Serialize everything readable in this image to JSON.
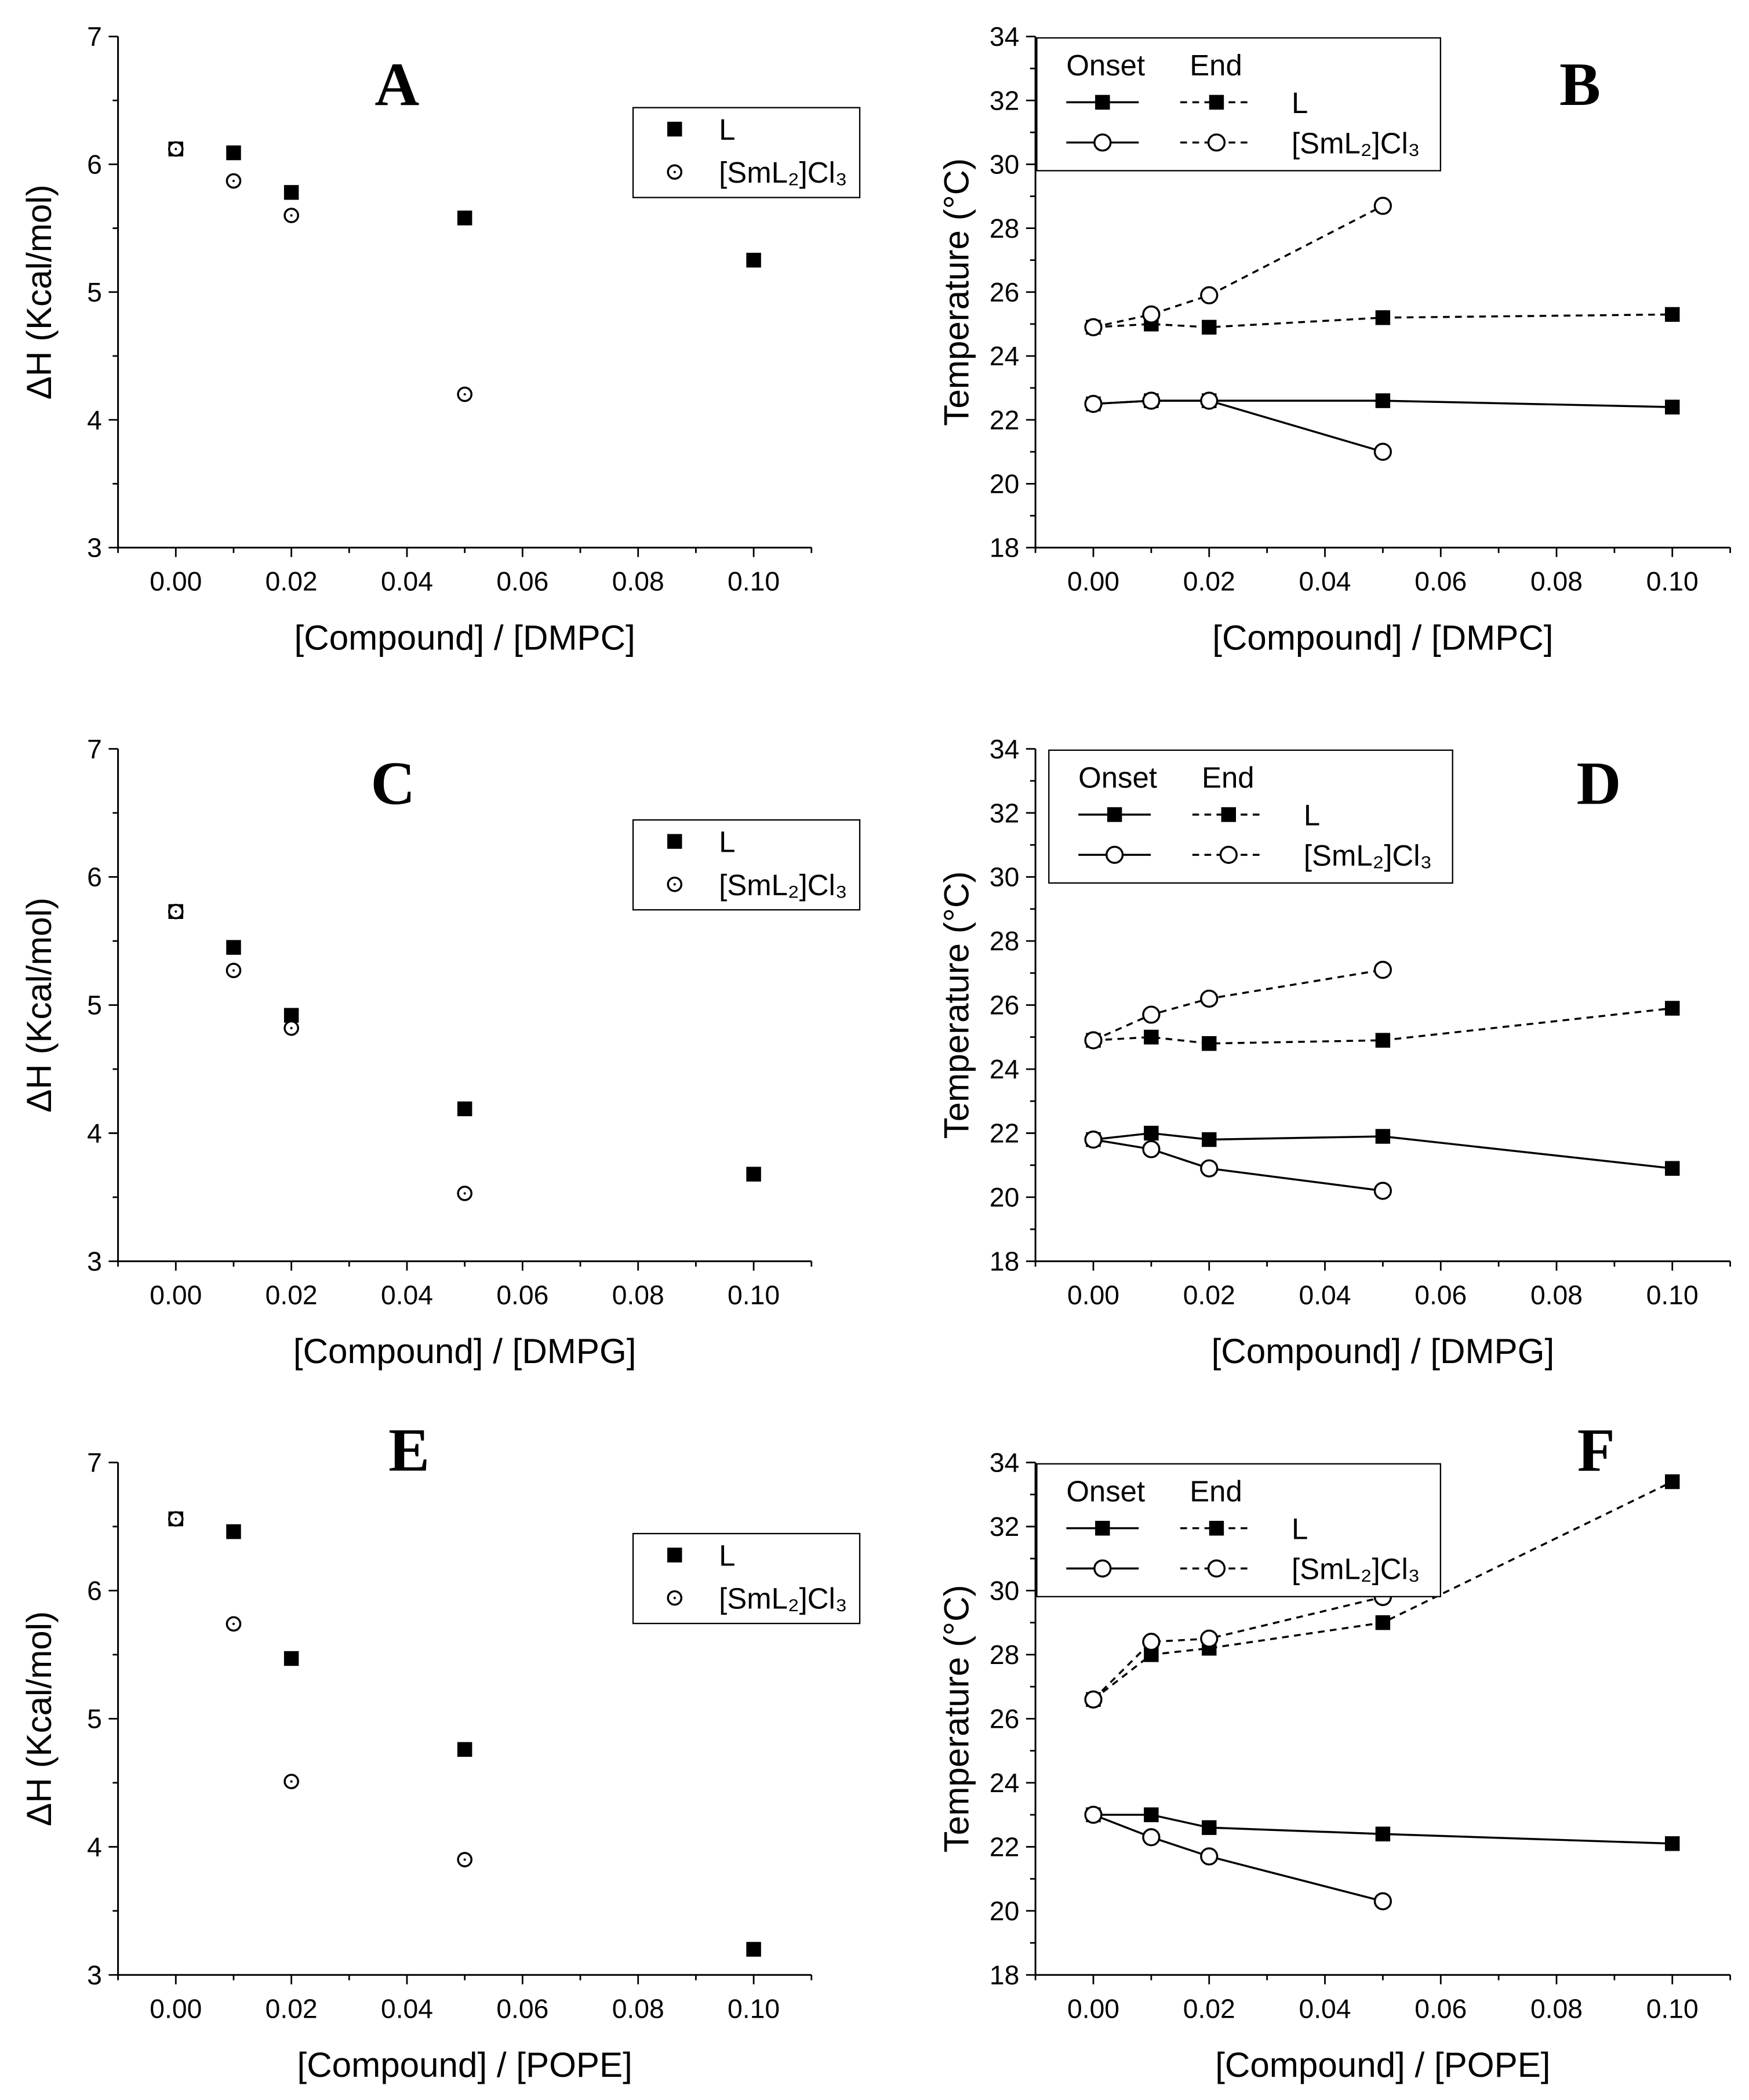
{
  "chart_data": [
    {
      "panel": "A",
      "type": "scatter",
      "xlabel": "[Compound] / [DMPC]",
      "ylabel": "ΔH (Kcal/mol)",
      "xlim": [
        -0.01,
        0.11
      ],
      "ylim": [
        3,
        7
      ],
      "xticks": [
        "0.00",
        "0.02",
        "0.04",
        "0.06",
        "0.08",
        "0.10"
      ],
      "yticks": [
        "3",
        "4",
        "5",
        "6",
        "7"
      ],
      "legend": {
        "headers": [],
        "placement": "top-right"
      },
      "series": [
        {
          "name": "L",
          "marker": "square",
          "x": [
            0,
            0.01,
            0.02,
            0.05,
            0.1
          ],
          "y": [
            6.12,
            6.09,
            5.78,
            5.58,
            5.25
          ]
        },
        {
          "name": "[SmL₂]Cl₃",
          "marker": "circle-dot",
          "x": [
            0,
            0.01,
            0.02,
            0.05
          ],
          "y": [
            6.12,
            5.87,
            5.6,
            4.2
          ]
        }
      ]
    },
    {
      "panel": "B",
      "type": "line",
      "xlabel": "[Compound] / [DMPC]",
      "ylabel": "Temperature (°C)",
      "xlim": [
        -0.01,
        0.11
      ],
      "ylim": [
        18,
        34
      ],
      "xticks": [
        "0.00",
        "0.02",
        "0.04",
        "0.06",
        "0.08",
        "0.10"
      ],
      "yticks": [
        "18",
        "20",
        "22",
        "24",
        "26",
        "28",
        "30",
        "32",
        "34"
      ],
      "legend": {
        "headers": [
          "Onset",
          "End"
        ],
        "placement": "top-left"
      },
      "series": [
        {
          "name": "L",
          "kind": "Onset",
          "marker": "square",
          "dash": false,
          "x": [
            0,
            0.01,
            0.02,
            0.05,
            0.1
          ],
          "y": [
            22.5,
            22.6,
            22.6,
            22.6,
            22.4
          ]
        },
        {
          "name": "L",
          "kind": "End",
          "marker": "square",
          "dash": true,
          "x": [
            0,
            0.01,
            0.02,
            0.05,
            0.1
          ],
          "y": [
            24.9,
            25.0,
            24.9,
            25.2,
            25.3
          ]
        },
        {
          "name": "[SmL₂]Cl₃",
          "kind": "Onset",
          "marker": "circle",
          "dash": false,
          "x": [
            0,
            0.01,
            0.02,
            0.05
          ],
          "y": [
            22.5,
            22.6,
            22.6,
            21.0
          ]
        },
        {
          "name": "[SmL₂]Cl₃",
          "kind": "End",
          "marker": "circle",
          "dash": true,
          "x": [
            0,
            0.01,
            0.02,
            0.05
          ],
          "y": [
            24.9,
            25.3,
            25.9,
            28.7
          ]
        }
      ]
    },
    {
      "panel": "C",
      "type": "scatter",
      "xlabel": "[Compound] / [DMPG]",
      "ylabel": "ΔH (Kcal/mol)",
      "xlim": [
        -0.01,
        0.11
      ],
      "ylim": [
        3,
        7
      ],
      "xticks": [
        "0.00",
        "0.02",
        "0.04",
        "0.06",
        "0.08",
        "0.10"
      ],
      "yticks": [
        "3",
        "4",
        "5",
        "6",
        "7"
      ],
      "legend": {
        "headers": [],
        "placement": "top-right"
      },
      "series": [
        {
          "name": "L",
          "marker": "square",
          "x": [
            0,
            0.01,
            0.02,
            0.05,
            0.1
          ],
          "y": [
            5.73,
            5.45,
            4.92,
            4.19,
            3.68
          ]
        },
        {
          "name": "[SmL₂]Cl₃",
          "marker": "circle-dot",
          "x": [
            0,
            0.01,
            0.02,
            0.05
          ],
          "y": [
            5.73,
            5.27,
            4.82,
            3.53
          ]
        }
      ]
    },
    {
      "panel": "D",
      "type": "line",
      "xlabel": "[Compound] / [DMPG]",
      "ylabel": "Temperature (°C)",
      "xlim": [
        -0.01,
        0.11
      ],
      "ylim": [
        18,
        34
      ],
      "xticks": [
        "0.00",
        "0.02",
        "0.04",
        "0.06",
        "0.08",
        "0.10"
      ],
      "yticks": [
        "18",
        "20",
        "22",
        "24",
        "26",
        "28",
        "30",
        "32",
        "34"
      ],
      "legend": {
        "headers": [
          "Onset",
          "End"
        ],
        "placement": "top-left"
      },
      "series": [
        {
          "name": "L",
          "kind": "Onset",
          "marker": "square",
          "dash": false,
          "x": [
            0,
            0.01,
            0.02,
            0.05,
            0.1
          ],
          "y": [
            21.8,
            22.0,
            21.8,
            21.9,
            20.9
          ]
        },
        {
          "name": "L",
          "kind": "End",
          "marker": "square",
          "dash": true,
          "x": [
            0,
            0.01,
            0.02,
            0.05,
            0.1
          ],
          "y": [
            24.9,
            25.0,
            24.8,
            24.9,
            25.9
          ]
        },
        {
          "name": "[SmL₂]Cl₃",
          "kind": "Onset",
          "marker": "circle",
          "dash": false,
          "x": [
            0,
            0.01,
            0.02,
            0.05
          ],
          "y": [
            21.8,
            21.5,
            20.9,
            20.2
          ]
        },
        {
          "name": "[SmL₂]Cl₃",
          "kind": "End",
          "marker": "circle",
          "dash": true,
          "x": [
            0,
            0.01,
            0.02,
            0.05
          ],
          "y": [
            24.9,
            25.7,
            26.2,
            27.1
          ]
        }
      ]
    },
    {
      "panel": "E",
      "type": "scatter",
      "xlabel": "[Compound] / [POPE]",
      "ylabel": "ΔH (Kcal/mol)",
      "xlim": [
        -0.01,
        0.11
      ],
      "ylim": [
        3,
        7
      ],
      "xticks": [
        "0.00",
        "0.02",
        "0.04",
        "0.06",
        "0.08",
        "0.10"
      ],
      "yticks": [
        "3",
        "4",
        "5",
        "6",
        "7"
      ],
      "legend": {
        "headers": [],
        "placement": "top-right"
      },
      "series": [
        {
          "name": "L",
          "marker": "square",
          "x": [
            0,
            0.01,
            0.02,
            0.05,
            0.1
          ],
          "y": [
            6.56,
            6.46,
            5.47,
            4.76,
            3.2
          ]
        },
        {
          "name": "[SmL₂]Cl₃",
          "marker": "circle-dot",
          "x": [
            0,
            0.01,
            0.02,
            0.05
          ],
          "y": [
            6.56,
            5.74,
            4.51,
            3.9
          ]
        }
      ]
    },
    {
      "panel": "F",
      "type": "line",
      "xlabel": "[Compound] / [POPE]",
      "ylabel": "Temperature (°C)",
      "xlim": [
        -0.01,
        0.11
      ],
      "ylim": [
        18,
        34
      ],
      "xticks": [
        "0.00",
        "0.02",
        "0.04",
        "0.06",
        "0.08",
        "0.10"
      ],
      "yticks": [
        "18",
        "20",
        "22",
        "24",
        "26",
        "28",
        "30",
        "32",
        "34"
      ],
      "legend": {
        "headers": [
          "Onset",
          "End"
        ],
        "placement": "top-left"
      },
      "series": [
        {
          "name": "L",
          "kind": "Onset",
          "marker": "square",
          "dash": false,
          "x": [
            0,
            0.01,
            0.02,
            0.05,
            0.1
          ],
          "y": [
            23.0,
            23.0,
            22.6,
            22.4,
            22.1
          ]
        },
        {
          "name": "L",
          "kind": "End",
          "marker": "square",
          "dash": true,
          "x": [
            0,
            0.01,
            0.02,
            0.05,
            0.1
          ],
          "y": [
            26.6,
            28.0,
            28.2,
            29.0,
            33.4
          ]
        },
        {
          "name": "[SmL₂]Cl₃",
          "kind": "Onset",
          "marker": "circle",
          "dash": false,
          "x": [
            0,
            0.01,
            0.02,
            0.05
          ],
          "y": [
            23.0,
            22.3,
            21.7,
            20.3
          ]
        },
        {
          "name": "[SmL₂]Cl₃",
          "kind": "End",
          "marker": "circle",
          "dash": true,
          "x": [
            0,
            0.01,
            0.02,
            0.05
          ],
          "y": [
            26.6,
            28.4,
            28.5,
            29.8
          ]
        }
      ]
    }
  ]
}
